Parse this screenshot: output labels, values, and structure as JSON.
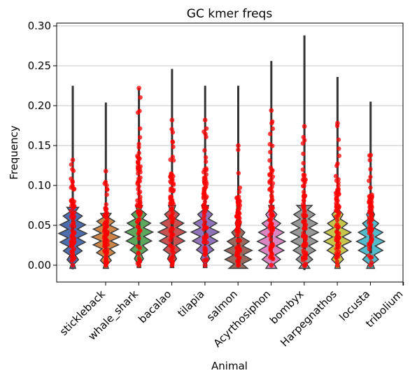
{
  "chart_data": {
    "type": "violin",
    "title": "GC kmer freqs",
    "xlabel": "Animal",
    "ylabel": "Frequency",
    "ylim": [
      -0.022,
      0.303
    ],
    "yticks": [
      "0.00",
      "0.05",
      "0.10",
      "0.15",
      "0.20",
      "0.25",
      "0.30"
    ],
    "ytick_values": [
      0.0,
      0.05,
      0.1,
      0.15,
      0.2,
      0.25,
      0.3
    ],
    "grid": "horizontal",
    "categories": [
      "stickleback",
      "whale_shark",
      "bacalao",
      "tilapia",
      "salmon",
      "Acyrthosiphon",
      "bombyx",
      "Harpegnathos",
      "locusta",
      "tribolium"
    ],
    "violin_colors": [
      "#3b5fa6",
      "#c97733",
      "#4c9e4c",
      "#c23f3f",
      "#8464b4",
      "#8c5a4f",
      "#d779bd",
      "#8d8d8d",
      "#c0bf38",
      "#3fb5c8"
    ],
    "point_color": "#ff0000",
    "series": [
      {
        "min": -0.005,
        "max": 0.225,
        "points_max": 0.132,
        "median": 0.04,
        "q1": 0.025,
        "q3": 0.06
      },
      {
        "min": -0.004,
        "max": 0.204,
        "points_max": 0.118,
        "median": 0.035,
        "q1": 0.02,
        "q3": 0.05
      },
      {
        "min": -0.003,
        "max": 0.222,
        "points_max": 0.222,
        "median": 0.04,
        "q1": 0.025,
        "q3": 0.055
      },
      {
        "min": -0.003,
        "max": 0.246,
        "points_max": 0.182,
        "median": 0.04,
        "q1": 0.025,
        "q3": 0.055
      },
      {
        "min": -0.003,
        "max": 0.225,
        "points_max": 0.182,
        "median": 0.04,
        "q1": 0.025,
        "q3": 0.055
      },
      {
        "min": -0.004,
        "max": 0.225,
        "points_max": 0.15,
        "median": 0.015,
        "q1": 0.005,
        "q3": 0.035
      },
      {
        "min": -0.004,
        "max": 0.256,
        "points_max": 0.194,
        "median": 0.03,
        "q1": 0.015,
        "q3": 0.05
      },
      {
        "min": -0.006,
        "max": 0.288,
        "points_max": 0.174,
        "median": 0.04,
        "q1": 0.02,
        "q3": 0.065
      },
      {
        "min": -0.004,
        "max": 0.236,
        "points_max": 0.178,
        "median": 0.035,
        "q1": 0.02,
        "q3": 0.05
      },
      {
        "min": -0.004,
        "max": 0.205,
        "points_max": 0.138,
        "median": 0.03,
        "q1": 0.015,
        "q3": 0.045
      }
    ]
  }
}
